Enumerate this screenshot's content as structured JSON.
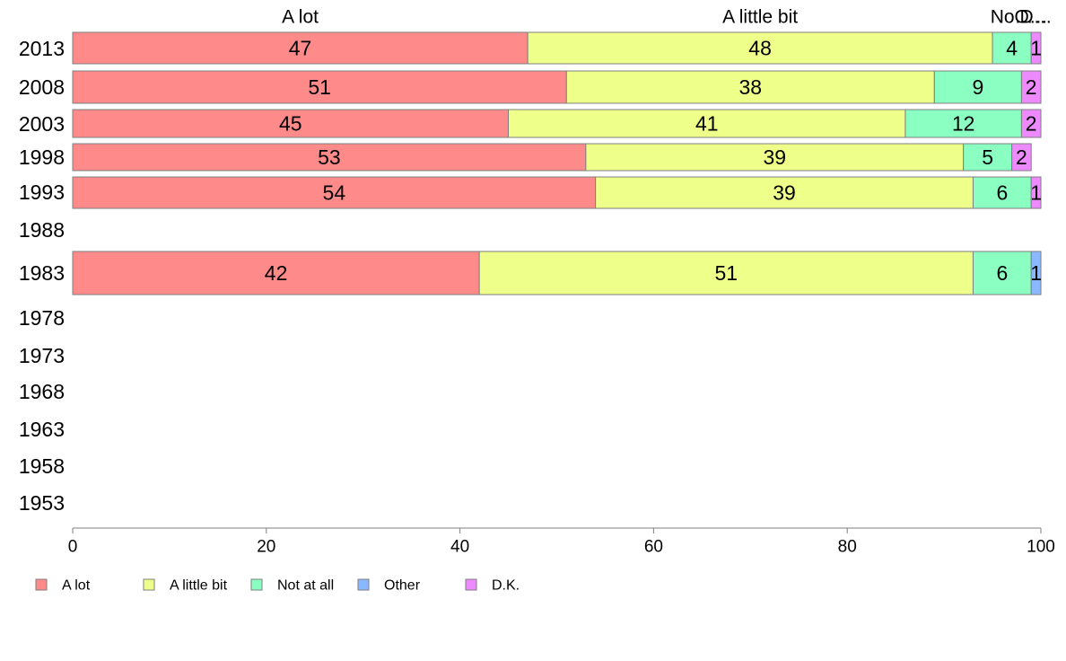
{
  "chart_data": {
    "type": "bar",
    "orientation": "horizontal",
    "stacked": true,
    "x": {
      "min": 0,
      "max": 100,
      "ticks": [
        0,
        20,
        40,
        60,
        80,
        100
      ]
    },
    "categories": [
      "2013",
      "2008",
      "2003",
      "1998",
      "1993",
      "1988",
      "1983",
      "1978",
      "1973",
      "1968",
      "1963",
      "1958",
      "1953"
    ],
    "series": [
      {
        "name": "A lot",
        "color": "#ff8a8a",
        "values": [
          47,
          51,
          45,
          53,
          54,
          null,
          42,
          null,
          null,
          null,
          null,
          null,
          null
        ]
      },
      {
        "name": "A little bit",
        "color": "#eeff8a",
        "values": [
          48,
          38,
          41,
          39,
          39,
          null,
          51,
          null,
          null,
          null,
          null,
          null,
          null
        ]
      },
      {
        "name": "Not at all",
        "color": "#8affc1",
        "values": [
          4,
          9,
          12,
          5,
          6,
          null,
          6,
          null,
          null,
          null,
          null,
          null,
          null
        ]
      },
      {
        "name": "Other",
        "color": "#8ab8ff",
        "values": [
          0,
          0,
          0,
          0,
          0,
          null,
          1,
          null,
          null,
          null,
          null,
          null,
          null
        ]
      },
      {
        "name": "D.K.",
        "color": "#ee8aff",
        "values": [
          1,
          2,
          2,
          2,
          1,
          null,
          0,
          null,
          null,
          null,
          null,
          null,
          null
        ]
      }
    ],
    "top_labels": [
      "A lot",
      "A little bit",
      "Not at all",
      "Other",
      "D.K."
    ],
    "top_labels_display": [
      "A lot",
      "A little bit",
      "No…",
      "O…",
      "D…"
    ],
    "legend": {
      "position": "bottom-left"
    },
    "grid": false
  }
}
